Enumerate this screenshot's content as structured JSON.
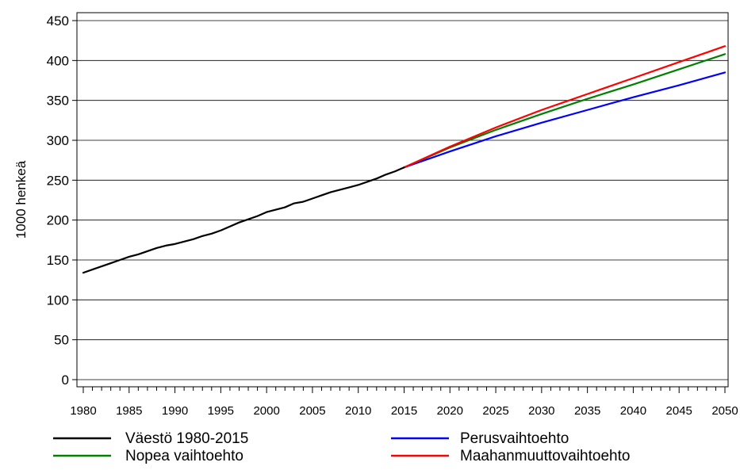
{
  "colors": {
    "background": "#ffffff",
    "axis": "#000000",
    "grid": "#000000"
  },
  "chart_data": {
    "type": "line",
    "title": "",
    "xlabel": "",
    "ylabel": "1000 henkeä",
    "xlim": [
      1980,
      2050
    ],
    "ylim": [
      0,
      450
    ],
    "grid": "horizontal",
    "legend_position": "bottom",
    "x_ticks": [
      "1980",
      "1985",
      "1990",
      "1995",
      "2000",
      "2005",
      "2010",
      "2015",
      "2020",
      "2025",
      "2030",
      "2035",
      "2040",
      "2045",
      "2050"
    ],
    "y_ticks": [
      "0",
      "50",
      "100",
      "150",
      "200",
      "250",
      "300",
      "350",
      "400",
      "450"
    ],
    "series": [
      {
        "name": "Väestö 1980-2015",
        "color": "#000000",
        "points": [
          [
            1980,
            134
          ],
          [
            1981,
            138
          ],
          [
            1982,
            142
          ],
          [
            1983,
            146
          ],
          [
            1984,
            150
          ],
          [
            1985,
            154
          ],
          [
            1986,
            157
          ],
          [
            1987,
            161
          ],
          [
            1988,
            165
          ],
          [
            1989,
            168
          ],
          [
            1990,
            170
          ],
          [
            1991,
            173
          ],
          [
            1992,
            176
          ],
          [
            1993,
            180
          ],
          [
            1994,
            183
          ],
          [
            1995,
            187
          ],
          [
            1996,
            192
          ],
          [
            1997,
            197
          ],
          [
            1998,
            201
          ],
          [
            1999,
            205
          ],
          [
            2000,
            210
          ],
          [
            2001,
            213
          ],
          [
            2002,
            216
          ],
          [
            2003,
            221
          ],
          [
            2004,
            223
          ],
          [
            2005,
            227
          ],
          [
            2006,
            231
          ],
          [
            2007,
            235
          ],
          [
            2008,
            238
          ],
          [
            2009,
            241
          ],
          [
            2010,
            244
          ],
          [
            2011,
            248
          ],
          [
            2012,
            252
          ],
          [
            2013,
            257
          ],
          [
            2014,
            261
          ],
          [
            2015,
            266
          ]
        ]
      },
      {
        "name": "Perusvaihtoehto",
        "color": "#0000ff",
        "points": [
          [
            2015,
            266
          ],
          [
            2020,
            286
          ],
          [
            2025,
            305
          ],
          [
            2030,
            322
          ],
          [
            2035,
            338
          ],
          [
            2040,
            354
          ],
          [
            2045,
            369
          ],
          [
            2050,
            385
          ]
        ]
      },
      {
        "name": "Nopea vaihtoehto",
        "color": "#008000",
        "points": [
          [
            2015,
            266
          ],
          [
            2020,
            291
          ],
          [
            2025,
            313
          ],
          [
            2030,
            333
          ],
          [
            2035,
            352
          ],
          [
            2040,
            370
          ],
          [
            2045,
            389
          ],
          [
            2050,
            408
          ]
        ]
      },
      {
        "name": "Maahanmuuttovaihtoehto",
        "color": "#ff0000",
        "points": [
          [
            2015,
            266
          ],
          [
            2020,
            292
          ],
          [
            2025,
            316
          ],
          [
            2030,
            338
          ],
          [
            2035,
            358
          ],
          [
            2040,
            378
          ],
          [
            2045,
            398
          ],
          [
            2050,
            418
          ]
        ]
      }
    ]
  }
}
